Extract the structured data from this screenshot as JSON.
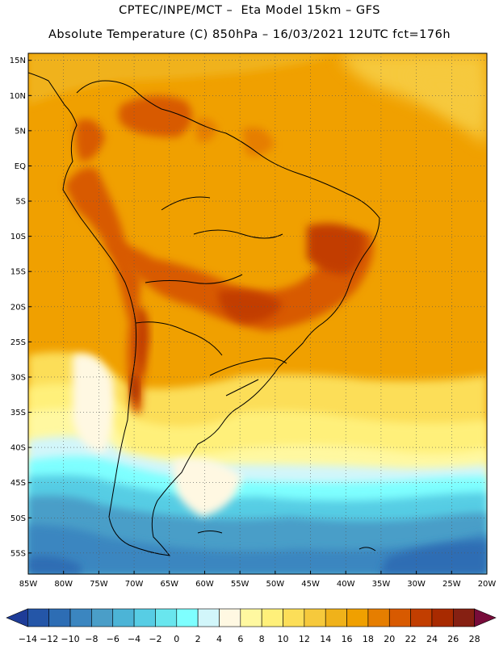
{
  "header": {
    "line1": "CPTEC/INPE/MCT –  Eta Model 15km – GFS",
    "line2": "Absolute Temperature (C) 850hPa – 16/03/2021 12UTC fct=176h"
  },
  "map": {
    "lat_labels": [
      "15N",
      "10N",
      "5N",
      "EQ",
      "5S",
      "10S",
      "15S",
      "20S",
      "25S",
      "30S",
      "35S",
      "40S",
      "45S",
      "50S",
      "55S"
    ],
    "lat_values": [
      15,
      10,
      5,
      0,
      -5,
      -10,
      -15,
      -20,
      -25,
      -30,
      -35,
      -40,
      -45,
      -50,
      -55
    ],
    "lon_labels": [
      "85W",
      "80W",
      "75W",
      "70W",
      "65W",
      "60W",
      "55W",
      "50W",
      "45W",
      "40W",
      "35W",
      "30W",
      "25W",
      "20W"
    ],
    "lon_values": [
      -85,
      -80,
      -75,
      -70,
      -65,
      -60,
      -55,
      -50,
      -45,
      -40,
      -35,
      -30,
      -25,
      -20
    ],
    "extent": {
      "lon_min": -85,
      "lon_max": -20,
      "lat_min": -58,
      "lat_max": 16
    },
    "ocean_color": "#f0a000",
    "land_color": "#ef9f00",
    "grid_lines": "dotted"
  },
  "colorbar": {
    "labels": [
      "-14",
      "-12",
      "-10",
      "-8",
      "-6",
      "-4",
      "-2",
      "0",
      "2",
      "4",
      "6",
      "8",
      "10",
      "12",
      "14",
      "16",
      "18",
      "20",
      "22",
      "24",
      "26",
      "28"
    ],
    "colors": [
      "#1e3c98",
      "#2456a8",
      "#2d6db4",
      "#3b86c0",
      "#4a9ec8",
      "#4cb4d6",
      "#57cde4",
      "#69e6ee",
      "#7effff",
      "#d2f6fa",
      "#fff8e2",
      "#fff8a0",
      "#fff07a",
      "#fcde58",
      "#f6c93c",
      "#f0b21a",
      "#f0a000",
      "#e67e00",
      "#d85a00",
      "#c23e00",
      "#a82a00",
      "#862012",
      "#780c3a"
    ]
  }
}
